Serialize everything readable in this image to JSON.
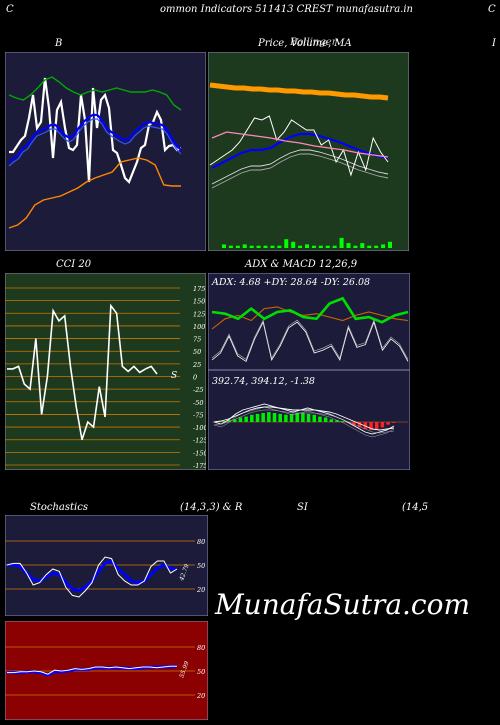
{
  "header": {
    "left_letter": "C",
    "title": "ommon  Indicators 511413 CREST munafasutra.in",
    "right_letter": "C"
  },
  "labels": {
    "bb": "B",
    "price": "Price,  Volume,  MA",
    "price_overlap": "Bollinger",
    "edge_right": "I",
    "cci": "CCI 20",
    "adx_macd": "ADX  & MACD 12,26,9",
    "stoch_left": "Stochastics",
    "stoch_mid": "(14,3,3) & R",
    "rsi": "SI",
    "rsi_params": "(14,5"
  },
  "watermark": "MunafaSutra.com",
  "colors": {
    "navy_panel": "#1c1c3a",
    "green_panel": "#1e3a1e",
    "red_panel": "#8b0000",
    "grid_orange": "#cc6600",
    "line_blue": "#0000ff",
    "line_green": "#00cc00",
    "line_orange": "#ff8800"
  },
  "chart_data": [
    {
      "type": "line",
      "name": "bollinger_bands",
      "series": [
        {
          "color": "#ffffff",
          "values": [
            152,
            152,
            146,
            140,
            136,
            118,
            95,
            128,
            122,
            78,
            108,
            158,
            110,
            102,
            128,
            148,
            150,
            145,
            95,
            120,
            182,
            88,
            128,
            100,
            95,
            108,
            150,
            153,
            165,
            178,
            182,
            172,
            162,
            148,
            145,
            125,
            122,
            112,
            120,
            150,
            146,
            145,
            150,
            148
          ]
        },
        {
          "color": "#0000ff",
          "values": [
            162,
            158,
            155,
            148,
            145,
            138,
            132,
            130,
            128,
            125,
            125,
            130,
            135,
            138,
            135,
            128,
            122,
            118,
            115,
            115,
            120,
            128,
            132,
            135,
            138,
            140,
            138,
            132,
            128,
            124,
            122,
            123,
            124,
            125,
            130,
            138,
            145,
            150
          ]
        },
        {
          "color": "#00aa00",
          "values": [
            95,
            98,
            100,
            95,
            88,
            80,
            77,
            82,
            88,
            92,
            95,
            92,
            90,
            92,
            90,
            88,
            90,
            92,
            92,
            92,
            90,
            92,
            95,
            105,
            110
          ]
        },
        {
          "color": "#ff8800",
          "values": [
            228,
            225,
            218,
            205,
            200,
            198,
            196,
            192,
            188,
            182,
            178,
            175,
            172,
            162,
            160,
            158,
            160,
            165,
            185,
            186,
            186
          ]
        }
      ]
    },
    {
      "type": "line",
      "name": "price_ma",
      "series": [
        {
          "color": "#ffaa00",
          "values": [
            85,
            86,
            87,
            88,
            88,
            89,
            89,
            90,
            90,
            91,
            91,
            92,
            92,
            93,
            93,
            94,
            95,
            95,
            96,
            97,
            97,
            98
          ]
        },
        {
          "color": "#0000ff",
          "values": [
            168,
            163,
            158,
            153,
            150,
            150,
            148,
            142,
            137,
            134,
            134,
            136,
            139,
            142,
            146,
            150,
            153,
            156,
            158
          ]
        },
        {
          "color": "#ffffff",
          "values": [
            165,
            160,
            155,
            150,
            142,
            130,
            118,
            120,
            116,
            140,
            132,
            120,
            125,
            130,
            130,
            145,
            140,
            162,
            150,
            175,
            152,
            170,
            138,
            152,
            162
          ]
        },
        {
          "color": "#ff88bb",
          "values": [
            138,
            132,
            134,
            136,
            138,
            141,
            143,
            146,
            148,
            150,
            153,
            155,
            157
          ]
        }
      ],
      "volume": [
        2,
        1,
        1,
        2,
        1,
        1,
        1,
        1,
        1,
        6,
        4,
        1,
        2,
        1,
        1,
        1,
        1,
        7,
        3,
        1,
        3,
        1,
        1,
        2,
        4
      ]
    },
    {
      "type": "line",
      "name": "cci",
      "ylim": [
        -175,
        175
      ],
      "ticks": [
        "175",
        "150",
        "125",
        "100",
        "75",
        "50",
        "25",
        "0",
        "-25",
        "-50",
        "-75",
        "-100",
        "-125",
        "-150",
        "-175"
      ],
      "values": [
        15,
        15,
        20,
        -15,
        -25,
        75,
        -75,
        0,
        130,
        110,
        120,
        20,
        -60,
        -125,
        -90,
        -100,
        -20,
        -80,
        140,
        125,
        20,
        10,
        20,
        8,
        15,
        20,
        5
      ],
      "last_label": "S"
    },
    {
      "type": "line",
      "name": "adx",
      "readout": "ADX: 4.68  +DY: 28.64  -DY: 26.08",
      "series": [
        {
          "name": "+DY",
          "color": "#00cc00",
          "values": [
            30,
            29,
            26,
            32,
            26,
            30,
            31,
            27,
            26,
            35,
            38,
            26,
            27,
            24,
            28,
            30
          ]
        },
        {
          "name": "-DY",
          "color": "#cc6600",
          "values": [
            20,
            26,
            28,
            25,
            32,
            33,
            30,
            28,
            29,
            27,
            25,
            28,
            30,
            28,
            26,
            25
          ]
        }
      ],
      "adx_values": [
        5,
        10,
        22,
        8,
        4,
        20,
        32,
        5,
        15,
        28,
        32,
        25,
        10,
        12,
        15,
        5,
        28,
        14,
        16,
        32,
        12,
        20,
        15,
        4
      ]
    },
    {
      "type": "bar",
      "name": "macd",
      "readout": "392.74,  394.12,  -1.38",
      "histogram": [
        1,
        1,
        2,
        3,
        5,
        6,
        8,
        9,
        10,
        11,
        10,
        9,
        8,
        9,
        10,
        10,
        9,
        8,
        6,
        5,
        3,
        2,
        1,
        -1,
        -4,
        -6,
        -8,
        -9,
        -8,
        -6,
        -3,
        -1
      ],
      "series": [
        {
          "name": "macd",
          "color": "#ffffff",
          "values": [
            0,
            -2,
            2,
            8,
            12,
            14,
            16,
            18,
            16,
            14,
            12,
            10,
            12,
            14,
            12,
            10,
            8,
            5,
            2,
            -2,
            -6,
            -10,
            -12,
            -10,
            -8,
            -4
          ]
        },
        {
          "name": "signal",
          "color": "#ffffff",
          "values": [
            0,
            1,
            3,
            6,
            9,
            12,
            14,
            15,
            15,
            14,
            13,
            12,
            12,
            12,
            12,
            11,
            10,
            8,
            5,
            2,
            -1,
            -4,
            -7,
            -8,
            -7,
            -6
          ]
        }
      ]
    },
    {
      "type": "line",
      "name": "stochastics",
      "ylim": [
        0,
        100
      ],
      "ticks": [
        "80",
        "50",
        "20"
      ],
      "last_value": "42.79",
      "series": [
        {
          "color": "#ffffff",
          "values": [
            50,
            52,
            52,
            40,
            25,
            28,
            38,
            45,
            42,
            22,
            12,
            10,
            18,
            28,
            50,
            60,
            58,
            38,
            30,
            25,
            25,
            30,
            48,
            55,
            55,
            40,
            45
          ]
        },
        {
          "color": "#0000ff",
          "values": [
            50,
            50,
            48,
            40,
            32,
            30,
            35,
            40,
            38,
            28,
            20,
            18,
            22,
            30,
            42,
            52,
            55,
            45,
            38,
            30,
            28,
            30,
            38,
            46,
            50,
            46,
            44
          ]
        }
      ]
    },
    {
      "type": "line",
      "name": "rsi",
      "ylim": [
        0,
        100
      ],
      "ticks": [
        "80",
        "50",
        "20"
      ],
      "last_value": "55.99",
      "series": [
        {
          "color": "#ffffff",
          "values": [
            48,
            48,
            49,
            49,
            50,
            49,
            46,
            51,
            50,
            51,
            53,
            52,
            53,
            55,
            55,
            54,
            55,
            54,
            53,
            54,
            55,
            55,
            54,
            55,
            56,
            56
          ]
        },
        {
          "color": "#0000ff",
          "values": [
            48,
            48,
            48,
            49,
            49,
            48,
            45,
            49,
            49,
            50,
            52,
            52,
            52,
            54,
            54,
            54,
            54,
            54,
            53,
            53,
            54,
            55,
            55,
            55,
            55,
            56
          ]
        }
      ]
    }
  ]
}
